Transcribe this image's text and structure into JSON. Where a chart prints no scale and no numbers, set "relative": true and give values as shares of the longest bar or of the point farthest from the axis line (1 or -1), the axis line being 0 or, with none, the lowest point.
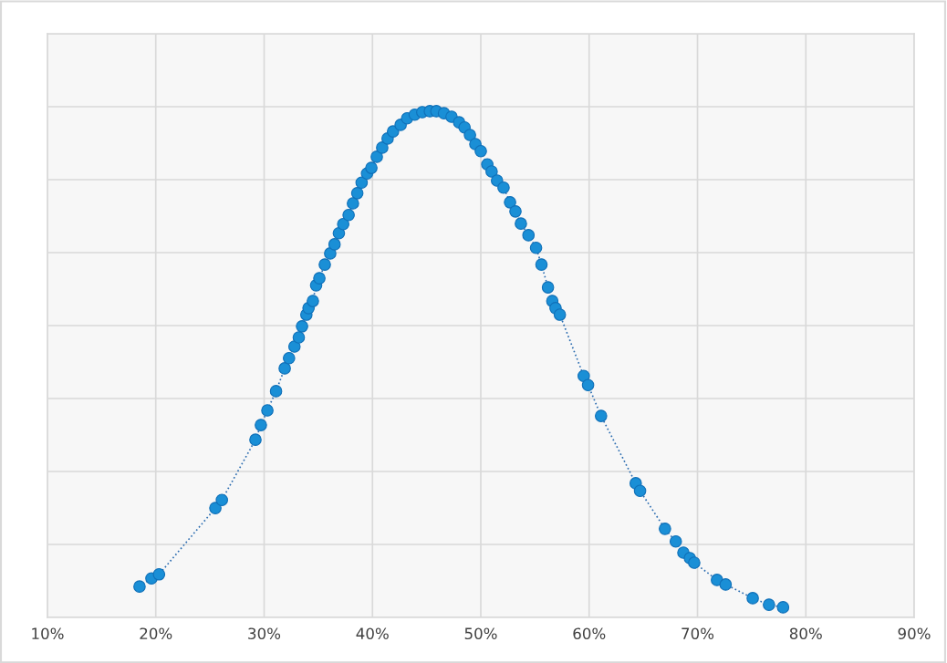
{
  "chart_data": {
    "type": "line",
    "relative": true,
    "marker": "circle",
    "line_style": "dotted",
    "grid": true,
    "xlim": [
      10,
      90
    ],
    "xticks": [
      {
        "value": 10,
        "label": "10%"
      },
      {
        "value": 20,
        "label": "20%"
      },
      {
        "value": 30,
        "label": "30%"
      },
      {
        "value": 40,
        "label": "40%"
      },
      {
        "value": 50,
        "label": "50%"
      },
      {
        "value": 60,
        "label": "60%"
      },
      {
        "value": 70,
        "label": "70%"
      },
      {
        "value": 80,
        "label": "80%"
      },
      {
        "value": 90,
        "label": "90%"
      }
    ],
    "series": [
      {
        "color": "#1a8fd6",
        "x": [
          18.5,
          19.6,
          20.3,
          25.5,
          26.1,
          29.2,
          29.7,
          30.3,
          31.1,
          31.9,
          32.3,
          32.8,
          33.2,
          33.5,
          33.9,
          34.1,
          34.5,
          34.8,
          35.1,
          35.6,
          36.1,
          36.5,
          36.9,
          37.3,
          37.8,
          38.2,
          38.6,
          39.0,
          39.5,
          39.9,
          40.4,
          40.9,
          41.4,
          41.9,
          42.6,
          43.2,
          43.9,
          44.6,
          45.3,
          45.9,
          46.6,
          47.3,
          48.0,
          48.5,
          49.0,
          49.5,
          50.0,
          50.6,
          51.0,
          51.5,
          52.1,
          52.7,
          53.2,
          53.7,
          54.4,
          55.1,
          55.6,
          56.2,
          56.6,
          56.9,
          57.3,
          59.5,
          59.9,
          61.1,
          64.3,
          64.7,
          67.0,
          68.0,
          68.7,
          69.3,
          69.7,
          71.8,
          72.6,
          75.1,
          76.6,
          77.9
        ],
        "values": [
          0.061,
          0.077,
          0.085,
          0.216,
          0.232,
          0.351,
          0.38,
          0.409,
          0.447,
          0.492,
          0.512,
          0.535,
          0.553,
          0.575,
          0.598,
          0.611,
          0.625,
          0.656,
          0.67,
          0.697,
          0.719,
          0.737,
          0.759,
          0.777,
          0.795,
          0.818,
          0.838,
          0.859,
          0.877,
          0.888,
          0.91,
          0.928,
          0.946,
          0.96,
          0.973,
          0.986,
          0.993,
          0.998,
          1,
          1,
          0.996,
          0.989,
          0.978,
          0.968,
          0.953,
          0.935,
          0.921,
          0.895,
          0.881,
          0.863,
          0.849,
          0.82,
          0.802,
          0.778,
          0.755,
          0.73,
          0.697,
          0.652,
          0.625,
          0.611,
          0.598,
          0.477,
          0.459,
          0.398,
          0.265,
          0.25,
          0.175,
          0.15,
          0.128,
          0.117,
          0.108,
          0.074,
          0.065,
          0.038,
          0.025,
          0.02
        ]
      }
    ]
  }
}
